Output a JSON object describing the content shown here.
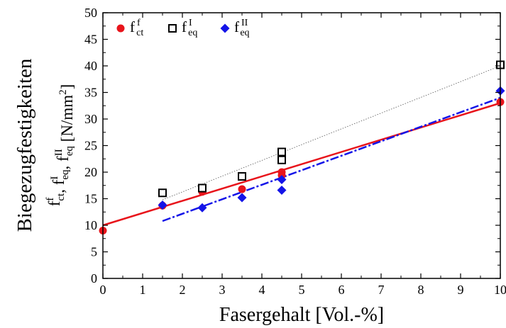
{
  "chart_data": {
    "type": "scatter",
    "xlabel": "Fasergehalt  [Vol.-%]",
    "ylabel_line1": "Biegezugfestigkeiten",
    "ylabel_line2": {
      "parts": [
        {
          "t": "f",
          "sup": "f",
          "sub": "ct"
        },
        {
          "t": ", f",
          "sup": "I",
          "sub": "eq"
        },
        {
          "t": ", f",
          "sup": "II",
          "sub": "eq"
        },
        {
          "t": "  [N/mm",
          "sup": "2",
          "sub": "",
          "tail": "]"
        }
      ]
    },
    "xlim": [
      0,
      10
    ],
    "ylim": [
      0,
      50
    ],
    "x_ticks": [
      "0",
      "1",
      "2",
      "3",
      "4",
      "5",
      "6",
      "7",
      "8",
      "9",
      "10"
    ],
    "y_ticks": [
      "0",
      "5",
      "10",
      "15",
      "20",
      "25",
      "30",
      "35",
      "40",
      "45",
      "50"
    ],
    "legend_position": "top-left",
    "series": [
      {
        "name": "f^f_ct",
        "legend": {
          "base": "f",
          "sup": "f",
          "sub": "ct"
        },
        "marker": "circle",
        "color": "#e8141b",
        "points": [
          [
            0,
            9.0
          ],
          [
            1.5,
            13.7
          ],
          [
            2.5,
            16.3
          ],
          [
            3.5,
            16.8
          ],
          [
            4.5,
            19.4
          ],
          [
            4.5,
            20.0
          ],
          [
            10,
            33.2
          ]
        ],
        "trend": {
          "style": "solid",
          "color": "#e8141b",
          "from": [
            0,
            10.0
          ],
          "to": [
            10,
            33.0
          ]
        }
      },
      {
        "name": "f^I_eq",
        "legend": {
          "base": "f",
          "sup": "I",
          "sub": "eq"
        },
        "marker": "open-square",
        "color": "#000000",
        "points": [
          [
            1.5,
            16.1
          ],
          [
            2.5,
            17.0
          ],
          [
            3.5,
            19.2
          ],
          [
            4.5,
            22.3
          ],
          [
            4.5,
            23.8
          ],
          [
            10,
            40.2
          ]
        ],
        "trend": {
          "style": "dotted",
          "color": "#555555",
          "from": [
            1.5,
            14.8
          ],
          "to": [
            10,
            40.0
          ]
        }
      },
      {
        "name": "f^II_eq",
        "legend": {
          "base": "f",
          "sup": "II",
          "sub": "eq"
        },
        "marker": "diamond",
        "color": "#1414e8",
        "points": [
          [
            1.5,
            13.8
          ],
          [
            2.5,
            13.3
          ],
          [
            3.5,
            15.2
          ],
          [
            4.5,
            16.6
          ],
          [
            4.5,
            18.6
          ],
          [
            10,
            35.3
          ]
        ],
        "trend": {
          "style": "dash-dot",
          "color": "#1414e8",
          "from": [
            1.5,
            10.8
          ],
          "to": [
            10,
            34.0
          ]
        }
      }
    ]
  }
}
